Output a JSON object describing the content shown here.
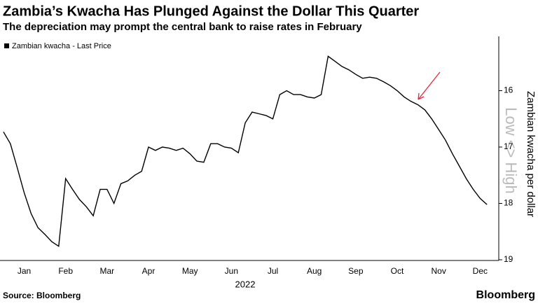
{
  "chart_data": {
    "type": "line",
    "title": "Zambia’s Kwacha Has Plunged Against the Dollar This Quarter",
    "subtitle": "The depreciation may prompt the central bank to raise rates in February",
    "y_label": "Zambian kwacha per dollar",
    "direction_label": "Low <> High",
    "x_label": "2022",
    "source": "Source: Bloomberg",
    "brand": "Bloomberg",
    "categories": [
      null,
      null,
      null,
      "Jan",
      null,
      null,
      null,
      null,
      null,
      "Feb",
      null,
      null,
      null,
      null,
      null,
      "Mar",
      null,
      null,
      null,
      null,
      null,
      "Apr",
      null,
      null,
      null,
      null,
      null,
      "May",
      null,
      null,
      null,
      null,
      null,
      "Jun",
      null,
      null,
      null,
      null,
      null,
      "Jul",
      null,
      null,
      null,
      null,
      null,
      "Aug",
      null,
      null,
      null,
      null,
      null,
      "Sep",
      null,
      null,
      null,
      null,
      null,
      "Oct",
      null,
      null,
      null,
      null,
      null,
      "Nov",
      null,
      null,
      null,
      null,
      null,
      "Dec",
      null,
      null
    ],
    "series": [
      {
        "name": "Zambian kwacha - Last Price",
        "color": "#000000",
        "values": [
          16.73,
          16.94,
          17.37,
          17.81,
          18.18,
          18.43,
          18.55,
          18.68,
          18.76,
          17.56,
          17.75,
          17.93,
          18.06,
          18.22,
          17.75,
          17.75,
          18.0,
          17.65,
          17.6,
          17.5,
          17.43,
          17.0,
          17.06,
          17.0,
          17.02,
          17.06,
          17.02,
          17.12,
          17.25,
          17.27,
          16.94,
          16.94,
          17.0,
          17.02,
          17.1,
          16.57,
          16.38,
          16.41,
          16.44,
          16.5,
          16.07,
          16.0,
          16.07,
          16.07,
          16.11,
          16.13,
          16.07,
          15.39,
          15.48,
          15.57,
          15.63,
          15.71,
          15.78,
          15.76,
          15.78,
          15.84,
          15.91,
          16.0,
          16.11,
          16.19,
          16.25,
          16.34,
          16.5,
          16.69,
          16.88,
          17.12,
          17.34,
          17.56,
          17.75,
          17.91,
          18.02,
          null
        ]
      }
    ],
    "ylim": [
      19,
      15
    ],
    "yticks": [
      16,
      17,
      18,
      19
    ],
    "grid": false,
    "legend": "top-left"
  }
}
